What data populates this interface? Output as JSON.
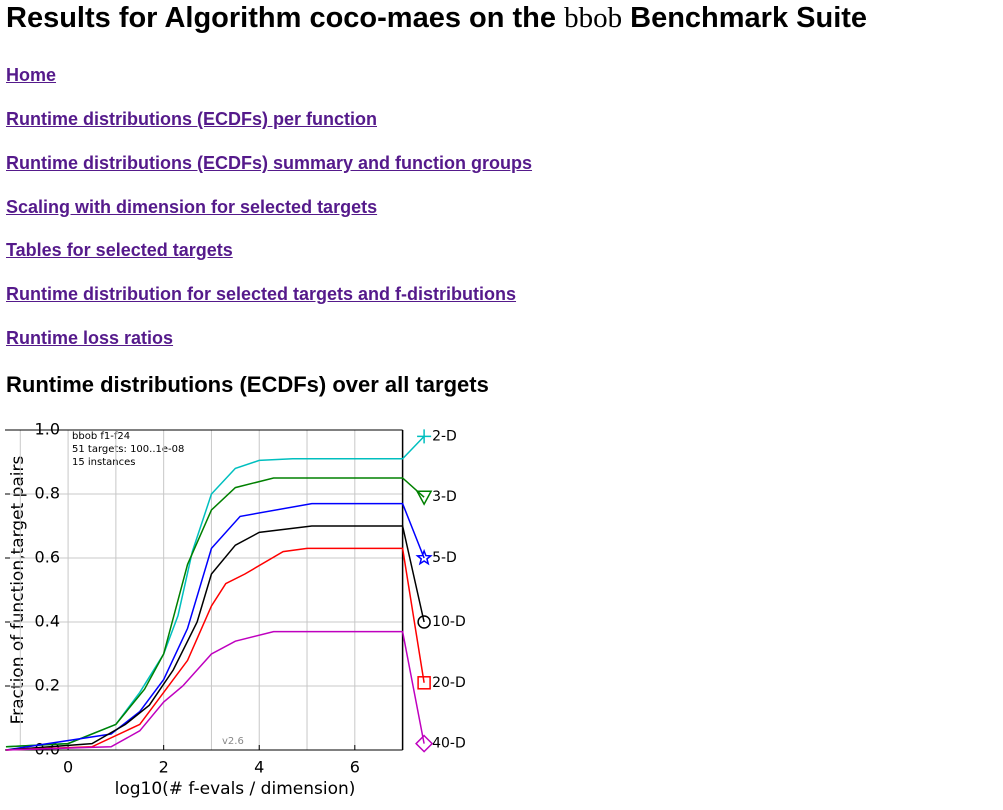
{
  "header": {
    "title_before": "Results for Algorithm coco-maes on the",
    "title_suite": "bbob",
    "title_after": "Benchmark Suite"
  },
  "links": [
    "Home",
    "Runtime distributions (ECDFs) per function",
    "Runtime distributions (ECDFs) summary and function groups",
    "Scaling with dimension for selected targets",
    "Tables for selected targets",
    "Runtime distribution for selected targets and f-distributions",
    "Runtime loss ratios"
  ],
  "section": {
    "heading": "Runtime distributions (ECDFs) over all targets",
    "chart_data": {
      "type": "line",
      "xlabel": "log10(# f-evals / dimension)",
      "ylabel": "Fraction of function,target pairs",
      "annotations": [
        "bbob f1-f24",
        "51 targets: 100..1e-08",
        "15 instances"
      ],
      "version": "v2.6",
      "xlim": [
        -1.32,
        7
      ],
      "ylim": [
        0,
        1
      ],
      "xticks": [
        0,
        2,
        4,
        6
      ],
      "yticks": [
        {
          "value": 0,
          "label": "0.0"
        },
        {
          "value": 0.2,
          "label": "0.2"
        },
        {
          "value": 0.4,
          "label": "0.4"
        },
        {
          "value": 0.6,
          "label": "0.6"
        },
        {
          "value": 0.8,
          "label": "0.8"
        },
        {
          "value": 1,
          "label": "1.0"
        }
      ],
      "grid": true,
      "series": [
        {
          "name": "2-D",
          "color": "#00bfbf",
          "marker": "plus",
          "x": [
            -1.3,
            0,
            1,
            1.5,
            2,
            2.3,
            2.6,
            3,
            3.5,
            4,
            4.7,
            7,
            7.45
          ],
          "values": [
            0.01,
            0.02,
            0.08,
            0.18,
            0.3,
            0.42,
            0.62,
            0.8,
            0.88,
            0.905,
            0.91,
            0.91,
            0.98
          ]
        },
        {
          "name": "3-D",
          "color": "#008000",
          "marker": "triangle",
          "x": [
            -1.3,
            0,
            1,
            1.6,
            2,
            2.5,
            3,
            3.5,
            4.3,
            7,
            7.45
          ],
          "values": [
            0.01,
            0.02,
            0.08,
            0.19,
            0.3,
            0.58,
            0.75,
            0.82,
            0.85,
            0.85,
            0.79
          ]
        },
        {
          "name": "5-D",
          "color": "#0000ff",
          "marker": "star",
          "x": [
            -1.3,
            0.9,
            1.5,
            2,
            2.5,
            3,
            3.6,
            5.1,
            7,
            7.45
          ],
          "values": [
            0,
            0.05,
            0.12,
            0.22,
            0.38,
            0.63,
            0.73,
            0.77,
            0.77,
            0.6
          ]
        },
        {
          "name": "10-D",
          "color": "#000000",
          "marker": "circle",
          "x": [
            -1.3,
            0.5,
            1.2,
            1.7,
            2.2,
            2.7,
            3,
            3.5,
            4,
            5.1,
            7,
            7.45
          ],
          "values": [
            0,
            0.02,
            0.08,
            0.14,
            0.25,
            0.4,
            0.55,
            0.64,
            0.68,
            0.7,
            0.7,
            0.4
          ]
        },
        {
          "name": "20-D",
          "color": "#ff0000",
          "marker": "square",
          "x": [
            -1.3,
            0.5,
            1.5,
            2,
            2.5,
            3,
            3.3,
            3.7,
            4.5,
            5,
            7,
            7.45
          ],
          "values": [
            0,
            0.01,
            0.08,
            0.18,
            0.28,
            0.45,
            0.52,
            0.55,
            0.62,
            0.63,
            0.63,
            0.21
          ]
        },
        {
          "name": "40-D",
          "color": "#bf00bf",
          "marker": "diamond",
          "x": [
            -1.3,
            0.9,
            1.5,
            2,
            2.4,
            3,
            3.5,
            4.3,
            4.8,
            7,
            7.45
          ],
          "values": [
            0,
            0.01,
            0.06,
            0.15,
            0.2,
            0.3,
            0.34,
            0.37,
            0.37,
            0.37,
            0.02
          ]
        }
      ]
    }
  }
}
